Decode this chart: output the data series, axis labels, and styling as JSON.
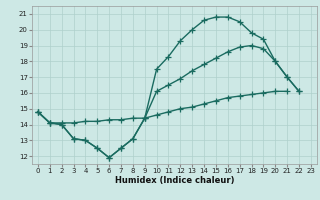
{
  "xlabel": "Humidex (Indice chaleur)",
  "xlim": [
    -0.5,
    23.5
  ],
  "ylim": [
    11.5,
    21.5
  ],
  "xticks": [
    0,
    1,
    2,
    3,
    4,
    5,
    6,
    7,
    8,
    9,
    10,
    11,
    12,
    13,
    14,
    15,
    16,
    17,
    18,
    19,
    20,
    21,
    22,
    23
  ],
  "yticks": [
    12,
    13,
    14,
    15,
    16,
    17,
    18,
    19,
    20,
    21
  ],
  "bg_color": "#cde8e5",
  "grid_color": "#afd0cc",
  "line_color": "#1a6b60",
  "line_width": 1.0,
  "marker": "+",
  "marker_size": 4,
  "marker_edge_width": 0.9,
  "curve1_x": [
    0,
    1,
    2,
    3,
    4,
    5,
    6,
    7,
    8,
    9,
    10,
    11,
    12,
    13,
    14,
    15,
    16,
    17,
    18,
    19,
    20,
    21,
    22,
    23
  ],
  "curve1_y": [
    14.8,
    14.1,
    14.0,
    13.1,
    13.0,
    12.5,
    11.9,
    12.5,
    13.1,
    14.4,
    17.5,
    18.3,
    19.3,
    20.0,
    20.6,
    20.8,
    20.8,
    20.5,
    19.8,
    19.4,
    18.0,
    17.0,
    16.1,
    null
  ],
  "curve2_x": [
    0,
    1,
    2,
    3,
    4,
    5,
    6,
    7,
    8,
    9,
    10,
    11,
    12,
    13,
    14,
    15,
    16,
    17,
    18,
    19,
    20,
    21,
    22,
    23
  ],
  "curve2_y": [
    14.8,
    14.1,
    14.0,
    13.1,
    13.0,
    12.5,
    11.9,
    12.5,
    13.1,
    14.4,
    16.1,
    16.5,
    16.9,
    17.4,
    17.8,
    18.2,
    18.6,
    18.9,
    19.0,
    18.8,
    18.0,
    17.0,
    16.1,
    null
  ],
  "curve3_x": [
    0,
    1,
    2,
    3,
    4,
    5,
    6,
    7,
    8,
    9,
    10,
    11,
    12,
    13,
    14,
    15,
    16,
    17,
    18,
    19,
    20,
    21,
    22,
    23
  ],
  "curve3_y": [
    14.8,
    14.1,
    14.1,
    14.1,
    14.2,
    14.2,
    14.3,
    14.3,
    14.4,
    14.4,
    14.6,
    14.8,
    15.0,
    15.1,
    15.3,
    15.5,
    15.7,
    15.8,
    15.9,
    16.0,
    16.1,
    16.1,
    null,
    null
  ]
}
